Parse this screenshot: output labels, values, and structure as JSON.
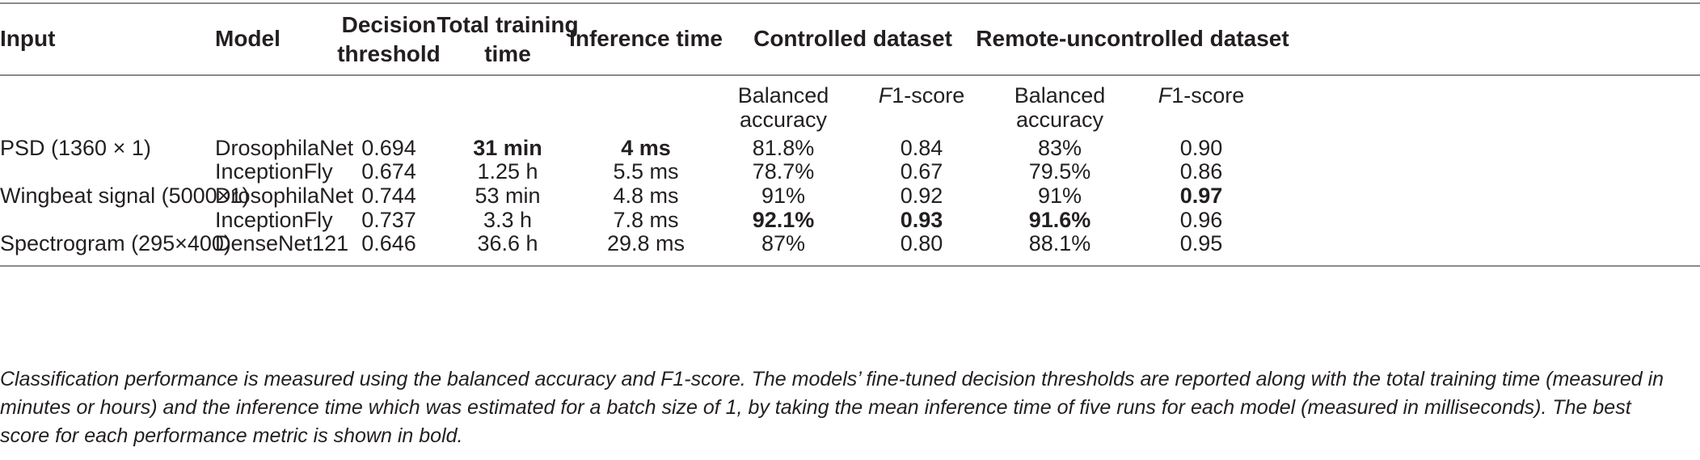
{
  "table": {
    "headers": {
      "input": "Input",
      "model": "Model",
      "decision_threshold": [
        "Decision",
        "threshold"
      ],
      "total_training_time": [
        "Total training",
        "time"
      ],
      "inference_time": "Inference time",
      "controlled": "Controlled dataset",
      "remote": "Remote-uncontrolled dataset"
    },
    "subheaders": {
      "controlled_bal": [
        "Balanced",
        "accuracy"
      ],
      "controlled_f1_italic": "F",
      "controlled_f1_rest": "1-score",
      "remote_bal": [
        "Balanced",
        "accuracy"
      ],
      "remote_f1_italic": "F",
      "remote_f1_rest": "1-score"
    },
    "rows": [
      {
        "input": "PSD (1360 × 1)",
        "model": "DrosophilaNet",
        "threshold": "0.694",
        "train": "31 min",
        "infer": "4 ms",
        "c_bal": "81.8%",
        "c_f1": "0.84",
        "r_bal": "83%",
        "r_f1": "0.90"
      },
      {
        "input": "",
        "model": "InceptionFly",
        "threshold": "0.674",
        "train": "1.25 h",
        "infer": "5.5 ms",
        "c_bal": "78.7%",
        "c_f1": "0.67",
        "r_bal": "79.5%",
        "r_f1": "0.86"
      },
      {
        "input": "Wingbeat signal (5000×1)",
        "model": "DrosophilaNet",
        "threshold": "0.744",
        "train": "53 min",
        "infer": "4.8 ms",
        "c_bal": "91%",
        "c_f1": "0.92",
        "r_bal": "91%",
        "r_f1": "0.97"
      },
      {
        "input": "",
        "model": "InceptionFly",
        "threshold": "0.737",
        "train": "3.3 h",
        "infer": "7.8 ms",
        "c_bal": "92.1%",
        "c_f1": "0.93",
        "r_bal": "91.6%",
        "r_f1": "0.96"
      },
      {
        "input": "Spectrogram (295×400)",
        "model": "DenseNet121",
        "threshold": "0.646",
        "train": "36.6 h",
        "infer": "29.8 ms",
        "c_bal": "87%",
        "c_f1": "0.80",
        "r_bal": "88.1%",
        "r_f1": "0.95"
      }
    ]
  },
  "caption": "Classification performance is measured using the balanced accuracy and F1-score. The models’ fine-tuned decision thresholds are reported along with the total training time (measured in minutes or hours) and the inference time which was estimated for a batch size of 1, by taking the mean inference time of five runs for each model (measured in milliseconds). The best score for each performance metric is shown in bold."
}
